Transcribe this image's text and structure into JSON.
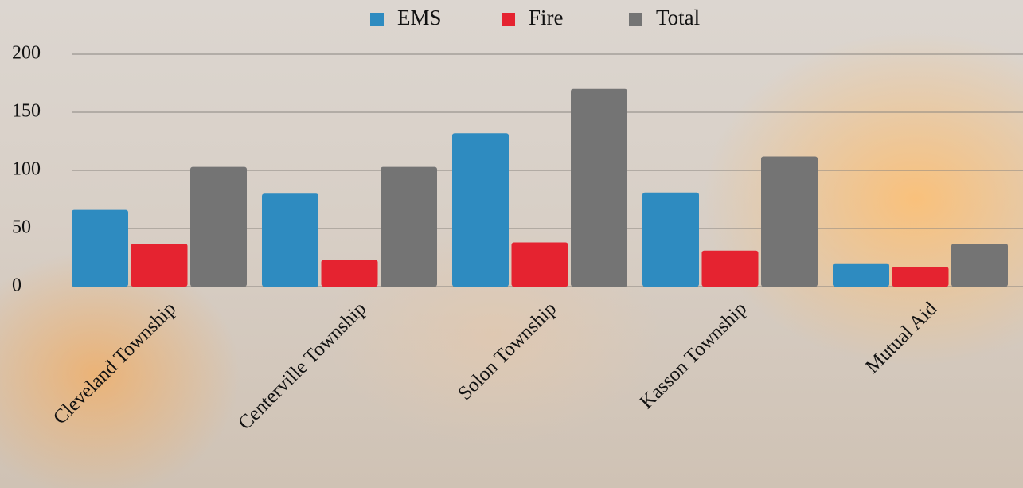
{
  "chart_data": {
    "type": "bar",
    "categories": [
      "Cleveland Township",
      "Centerville Township",
      "Solon Township",
      "Kasson Township",
      "Mutual Aid"
    ],
    "series": [
      {
        "name": "EMS",
        "color": "#2e8bc0",
        "values": [
          66,
          80,
          132,
          81,
          20
        ]
      },
      {
        "name": "Fire",
        "color": "#e52330",
        "values": [
          37,
          23,
          38,
          31,
          17
        ]
      },
      {
        "name": "Total",
        "color": "#747474",
        "values": [
          103,
          103,
          170,
          112,
          37
        ]
      }
    ],
    "ylim": [
      0,
      200
    ],
    "yticks": [
      0,
      50,
      100,
      150,
      200
    ],
    "grid": true,
    "legend": "top"
  }
}
